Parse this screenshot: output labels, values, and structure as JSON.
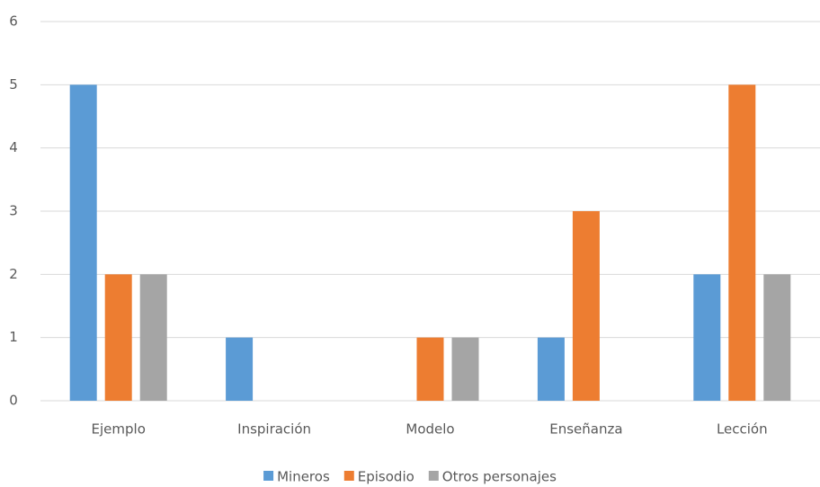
{
  "chart_data": {
    "type": "bar",
    "categories": [
      "Ejemplo",
      "Inspiración",
      "Modelo",
      "Enseñanza",
      "Lección"
    ],
    "series": [
      {
        "name": "Mineros",
        "color": "#5b9bd5",
        "values": [
          5,
          1,
          0,
          1,
          2
        ]
      },
      {
        "name": "Episodio",
        "color": "#ed7d31",
        "values": [
          2,
          0,
          1,
          3,
          5
        ]
      },
      {
        "name": "Otros personajes",
        "color": "#a5a5a5",
        "values": [
          2,
          0,
          1,
          0,
          2
        ]
      }
    ],
    "ylim": [
      0,
      6
    ],
    "yticks": [
      0,
      1,
      2,
      3,
      4,
      5,
      6
    ],
    "grid": true,
    "legend": "bottom"
  }
}
